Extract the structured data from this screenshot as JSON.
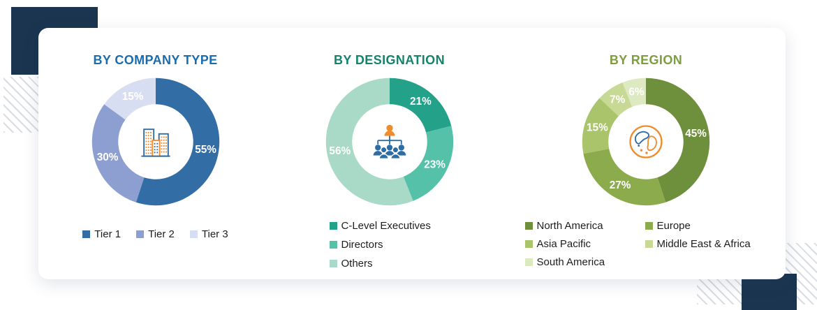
{
  "chart_data": [
    {
      "type": "pie",
      "style": "donut",
      "title": "BY COMPANY TYPE",
      "title_color": "#1a6cad",
      "center_icon": "buildings-icon",
      "legend_layout": "row",
      "value_suffix": "%",
      "labels": [
        "Tier 1",
        "Tier 2",
        "Tier 3"
      ],
      "values": [
        55,
        30,
        15
      ],
      "colors": [
        "#336da6",
        "#8c9fd0",
        "#d8def1"
      ]
    },
    {
      "type": "pie",
      "style": "donut",
      "title": "BY DESIGNATION",
      "title_color": "#15836c",
      "center_icon": "org-chart-icon",
      "legend_layout": "column",
      "value_suffix": "%",
      "labels": [
        "C-Level Executives",
        "Directors",
        "Others"
      ],
      "values": [
        21,
        23,
        56
      ],
      "colors": [
        "#23a189",
        "#55c1a9",
        "#a8dac7"
      ]
    },
    {
      "type": "pie",
      "style": "donut",
      "title": "BY REGION",
      "title_color": "#7d9d3f",
      "center_icon": "globe-icon",
      "legend_layout": "two-column",
      "legend_order": [
        0,
        2,
        4,
        1,
        3
      ],
      "value_suffix": "%",
      "labels": [
        "North America",
        "Europe",
        "Asia Pacific",
        "Middle East & Africa",
        "South America"
      ],
      "values": [
        45,
        27,
        15,
        7,
        6
      ],
      "colors": [
        "#6e8f3b",
        "#8cab4d",
        "#a9c46b",
        "#c7d995",
        "#dde9c1"
      ]
    }
  ],
  "decor": {
    "corner_color": "#1b3550",
    "stripe_color": "#d9dde2",
    "icon_blue": "#2e6da4",
    "icon_orange": "#ef8c2e"
  }
}
